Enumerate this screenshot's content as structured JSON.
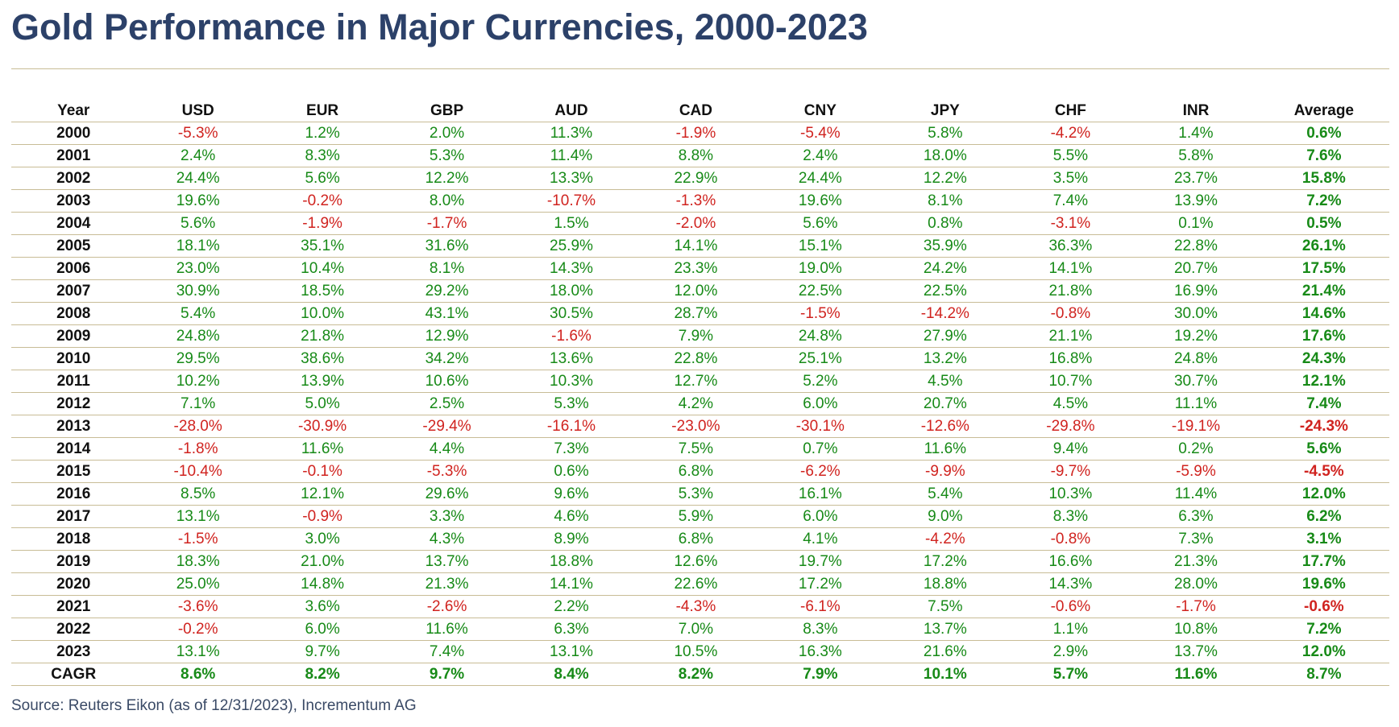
{
  "colors": {
    "title": "#2c4169",
    "positive": "#178a17",
    "negative": "#d0231f",
    "rule": "#c8bc96",
    "source": "#3a4a66"
  },
  "chart_data": {
    "type": "table",
    "title": "Gold Performance in Major Currencies, 2000-2023",
    "columns": [
      "Year",
      "USD",
      "EUR",
      "GBP",
      "AUD",
      "CAD",
      "CNY",
      "JPY",
      "CHF",
      "INR",
      "Average"
    ],
    "rows": [
      {
        "year": "2000",
        "values": [
          "-5.3%",
          "1.2%",
          "2.0%",
          "11.3%",
          "-1.9%",
          "-5.4%",
          "5.8%",
          "-4.2%",
          "1.4%",
          "0.6%"
        ]
      },
      {
        "year": "2001",
        "values": [
          "2.4%",
          "8.3%",
          "5.3%",
          "11.4%",
          "8.8%",
          "2.4%",
          "18.0%",
          "5.5%",
          "5.8%",
          "7.6%"
        ]
      },
      {
        "year": "2002",
        "values": [
          "24.4%",
          "5.6%",
          "12.2%",
          "13.3%",
          "22.9%",
          "24.4%",
          "12.2%",
          "3.5%",
          "23.7%",
          "15.8%"
        ]
      },
      {
        "year": "2003",
        "values": [
          "19.6%",
          "-0.2%",
          "8.0%",
          "-10.7%",
          "-1.3%",
          "19.6%",
          "8.1%",
          "7.4%",
          "13.9%",
          "7.2%"
        ]
      },
      {
        "year": "2004",
        "values": [
          "5.6%",
          "-1.9%",
          "-1.7%",
          "1.5%",
          "-2.0%",
          "5.6%",
          "0.8%",
          "-3.1%",
          "0.1%",
          "0.5%"
        ]
      },
      {
        "year": "2005",
        "values": [
          "18.1%",
          "35.1%",
          "31.6%",
          "25.9%",
          "14.1%",
          "15.1%",
          "35.9%",
          "36.3%",
          "22.8%",
          "26.1%"
        ]
      },
      {
        "year": "2006",
        "values": [
          "23.0%",
          "10.4%",
          "8.1%",
          "14.3%",
          "23.3%",
          "19.0%",
          "24.2%",
          "14.1%",
          "20.7%",
          "17.5%"
        ]
      },
      {
        "year": "2007",
        "values": [
          "30.9%",
          "18.5%",
          "29.2%",
          "18.0%",
          "12.0%",
          "22.5%",
          "22.5%",
          "21.8%",
          "16.9%",
          "21.4%"
        ]
      },
      {
        "year": "2008",
        "values": [
          "5.4%",
          "10.0%",
          "43.1%",
          "30.5%",
          "28.7%",
          "-1.5%",
          "-14.2%",
          "-0.8%",
          "30.0%",
          "14.6%"
        ]
      },
      {
        "year": "2009",
        "values": [
          "24.8%",
          "21.8%",
          "12.9%",
          "-1.6%",
          "7.9%",
          "24.8%",
          "27.9%",
          "21.1%",
          "19.2%",
          "17.6%"
        ]
      },
      {
        "year": "2010",
        "values": [
          "29.5%",
          "38.6%",
          "34.2%",
          "13.6%",
          "22.8%",
          "25.1%",
          "13.2%",
          "16.8%",
          "24.8%",
          "24.3%"
        ]
      },
      {
        "year": "2011",
        "values": [
          "10.2%",
          "13.9%",
          "10.6%",
          "10.3%",
          "12.7%",
          "5.2%",
          "4.5%",
          "10.7%",
          "30.7%",
          "12.1%"
        ]
      },
      {
        "year": "2012",
        "values": [
          "7.1%",
          "5.0%",
          "2.5%",
          "5.3%",
          "4.2%",
          "6.0%",
          "20.7%",
          "4.5%",
          "11.1%",
          "7.4%"
        ]
      },
      {
        "year": "2013",
        "values": [
          "-28.0%",
          "-30.9%",
          "-29.4%",
          "-16.1%",
          "-23.0%",
          "-30.1%",
          "-12.6%",
          "-29.8%",
          "-19.1%",
          "-24.3%"
        ]
      },
      {
        "year": "2014",
        "values": [
          "-1.8%",
          "11.6%",
          "4.4%",
          "7.3%",
          "7.5%",
          "0.7%",
          "11.6%",
          "9.4%",
          "0.2%",
          "5.6%"
        ]
      },
      {
        "year": "2015",
        "values": [
          "-10.4%",
          "-0.1%",
          "-5.3%",
          "0.6%",
          "6.8%",
          "-6.2%",
          "-9.9%",
          "-9.7%",
          "-5.9%",
          "-4.5%"
        ]
      },
      {
        "year": "2016",
        "values": [
          "8.5%",
          "12.1%",
          "29.6%",
          "9.6%",
          "5.3%",
          "16.1%",
          "5.4%",
          "10.3%",
          "11.4%",
          "12.0%"
        ]
      },
      {
        "year": "2017",
        "values": [
          "13.1%",
          "-0.9%",
          "3.3%",
          "4.6%",
          "5.9%",
          "6.0%",
          "9.0%",
          "8.3%",
          "6.3%",
          "6.2%"
        ]
      },
      {
        "year": "2018",
        "values": [
          "-1.5%",
          "3.0%",
          "4.3%",
          "8.9%",
          "6.8%",
          "4.1%",
          "-4.2%",
          "-0.8%",
          "7.3%",
          "3.1%"
        ]
      },
      {
        "year": "2019",
        "values": [
          "18.3%",
          "21.0%",
          "13.7%",
          "18.8%",
          "12.6%",
          "19.7%",
          "17.2%",
          "16.6%",
          "21.3%",
          "17.7%"
        ]
      },
      {
        "year": "2020",
        "values": [
          "25.0%",
          "14.8%",
          "21.3%",
          "14.1%",
          "22.6%",
          "17.2%",
          "18.8%",
          "14.3%",
          "28.0%",
          "19.6%"
        ]
      },
      {
        "year": "2021",
        "values": [
          "-3.6%",
          "3.6%",
          "-2.6%",
          "2.2%",
          "-4.3%",
          "-6.1%",
          "7.5%",
          "-0.6%",
          "-1.7%",
          "-0.6%"
        ]
      },
      {
        "year": "2022",
        "values": [
          "-0.2%",
          "6.0%",
          "11.6%",
          "6.3%",
          "7.0%",
          "8.3%",
          "13.7%",
          "1.1%",
          "10.8%",
          "7.2%"
        ]
      },
      {
        "year": "2023",
        "values": [
          "13.1%",
          "9.7%",
          "7.4%",
          "13.1%",
          "10.5%",
          "16.3%",
          "21.6%",
          "2.9%",
          "13.7%",
          "12.0%"
        ]
      }
    ],
    "summary_row": {
      "label": "CAGR",
      "values": [
        "8.6%",
        "8.2%",
        "9.7%",
        "8.4%",
        "8.2%",
        "7.9%",
        "10.1%",
        "5.7%",
        "11.6%",
        "8.7%"
      ]
    },
    "source": "Source: Reuters Eikon (as of 12/31/2023), Incrementum AG"
  }
}
